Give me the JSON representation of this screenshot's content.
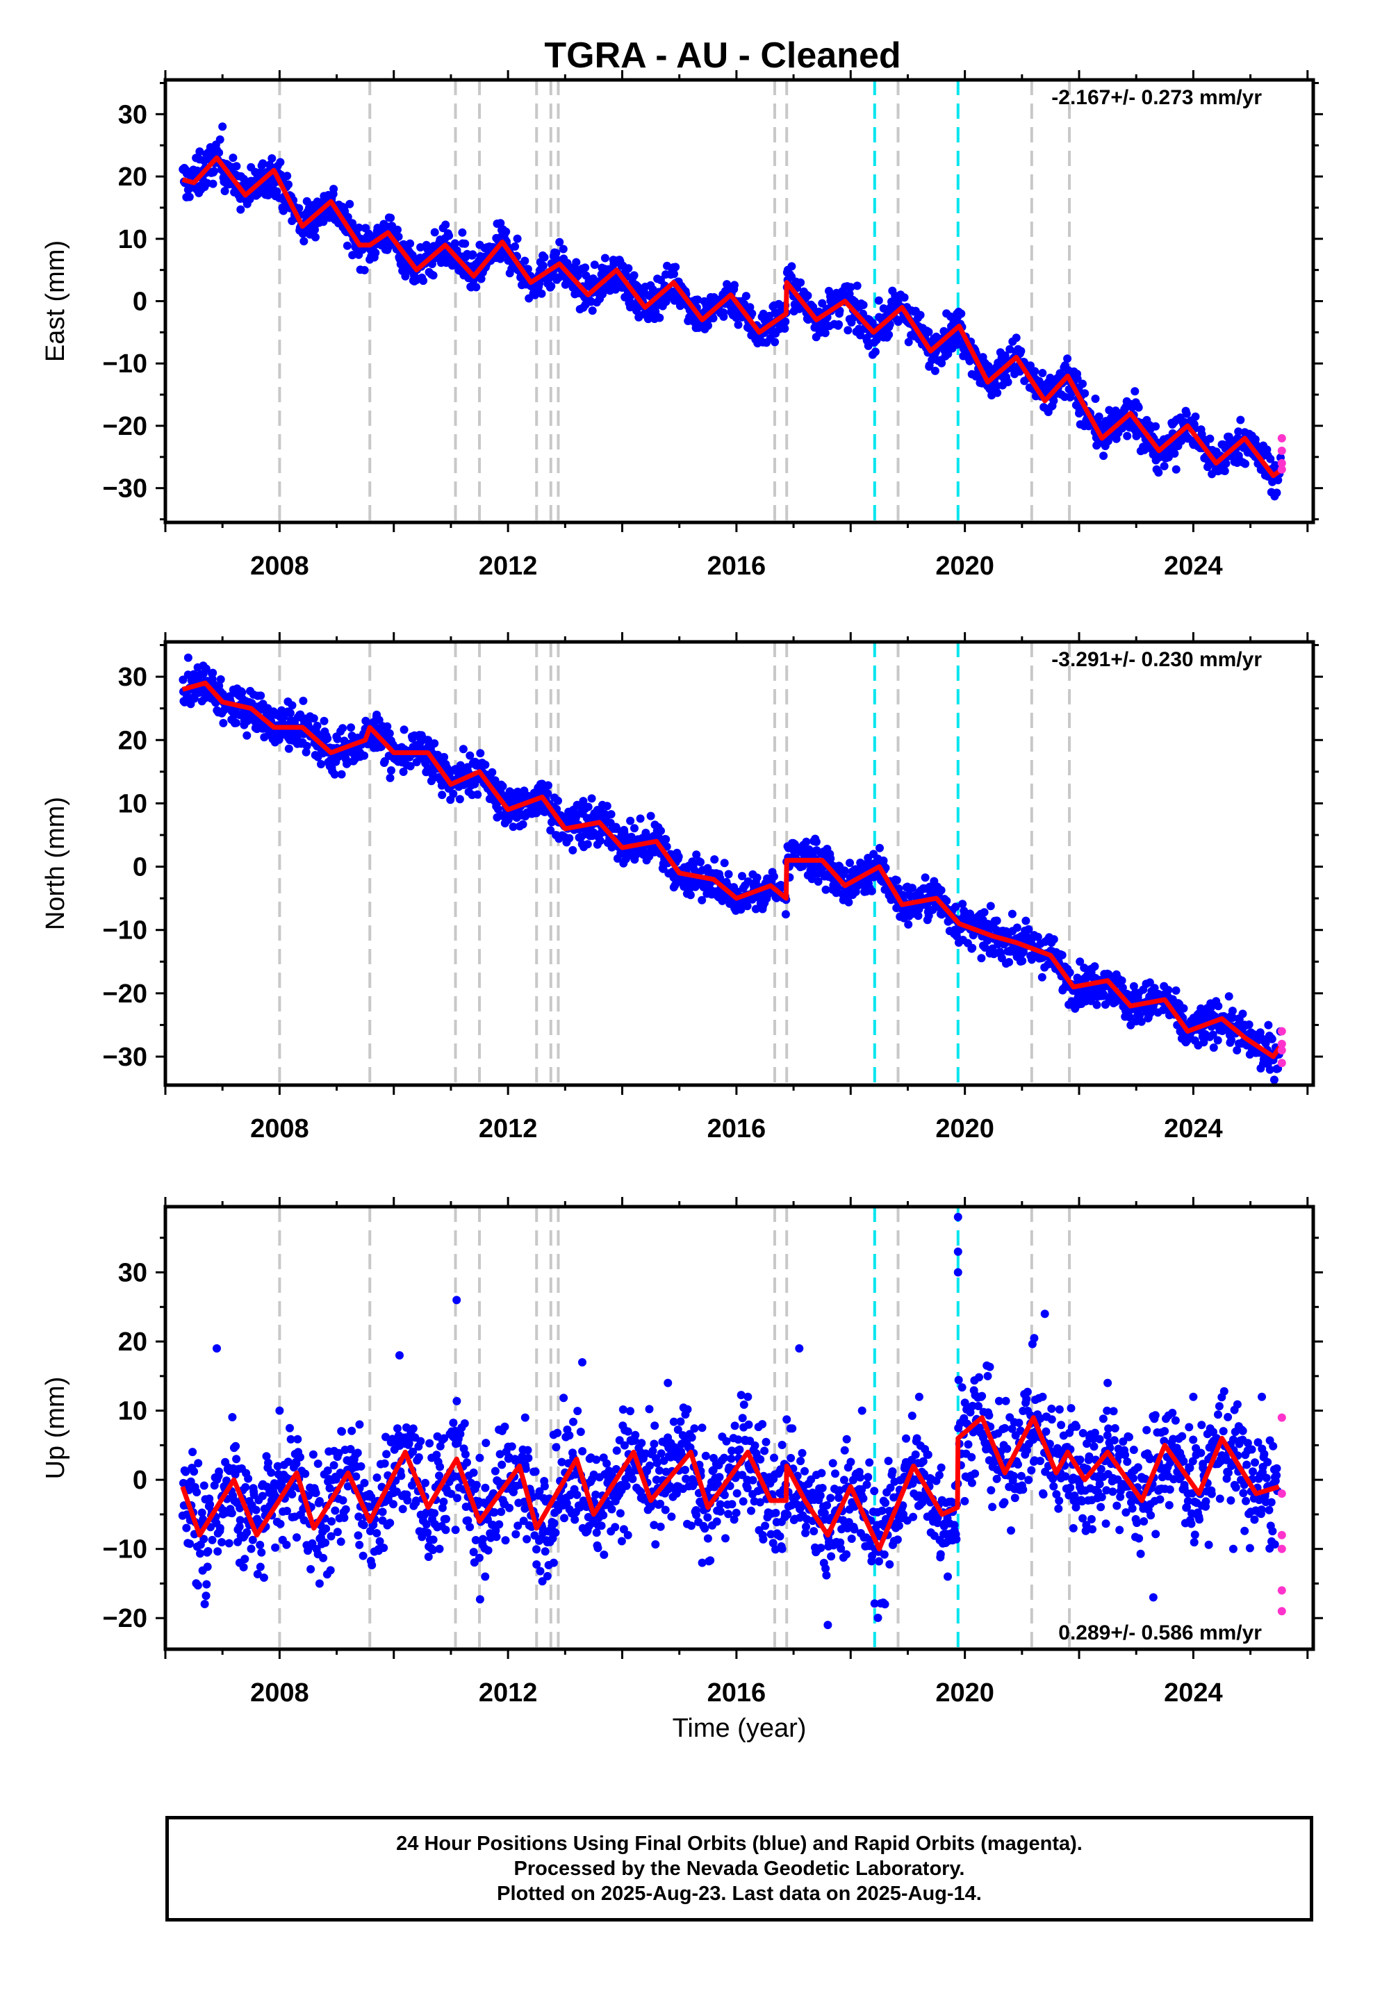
{
  "chart_data": {
    "title": "TGRA  - AU - Cleaned",
    "type": "scatter",
    "xlabel": "Time (year)",
    "x_ticks": [
      2008,
      2012,
      2016,
      2020,
      2024
    ],
    "xlim": [
      2006.0,
      2026.1
    ],
    "event_lines": {
      "gray": [
        2008.0,
        2009.58,
        2011.08,
        2011.5,
        2012.5,
        2012.75,
        2012.88,
        2016.67,
        2016.88,
        2018.83,
        2021.17,
        2021.83
      ],
      "cyan": [
        2018.42,
        2019.88
      ]
    },
    "colors": {
      "final_orbits": "#0000ff",
      "rapid_orbits": "#ff33cc",
      "model": "#ff0000",
      "gray_line": "#c8c8c8",
      "cyan_line": "#00e5ee"
    },
    "panels": [
      {
        "name": "east",
        "ylabel": "East (mm)",
        "y_ticks": [
          30,
          20,
          10,
          0,
          -10,
          -20,
          -30
        ],
        "ylim": [
          -35.5,
          35.5
        ],
        "rate_text": "-2.167+/- 0.273 mm/yr",
        "rate_position": "top-right",
        "model_x": [
          2006.3,
          2006.5,
          2006.9,
          2007.4,
          2007.9,
          2008.4,
          2008.9,
          2009.4,
          2009.58,
          2009.9,
          2010.4,
          2010.9,
          2011.4,
          2011.9,
          2012.4,
          2012.9,
          2013.4,
          2013.9,
          2014.4,
          2014.9,
          2015.4,
          2015.9,
          2016.4,
          2016.87,
          2016.88,
          2017.4,
          2017.9,
          2018.4,
          2018.9,
          2019.4,
          2019.9,
          2020.4,
          2020.9,
          2021.4,
          2021.8,
          2022.4,
          2022.9,
          2023.4,
          2023.9,
          2024.4,
          2024.9,
          2025.4,
          2025.55
        ],
        "model_y": [
          19.5,
          19,
          23,
          17,
          21,
          12,
          16,
          9,
          9,
          11,
          5,
          9,
          4,
          9.5,
          3,
          6,
          1,
          5,
          -1,
          3,
          -3,
          1,
          -5,
          -2,
          3,
          -3,
          0,
          -5,
          -1,
          -8,
          -4,
          -13,
          -9,
          -16,
          -12,
          -22,
          -18,
          -24,
          -20,
          -26,
          -22,
          -28,
          -27
        ],
        "points": {
          "final": [
            [
              2006.6,
              24
            ],
            [
              2007.0,
              28
            ],
            [
              2007.8,
              17
            ],
            [
              2008.5,
              13
            ],
            [
              2009.3,
              10
            ],
            [
              2010.2,
              8
            ],
            [
              2011.2,
              11
            ],
            [
              2011.8,
              7
            ],
            [
              2012.6,
              4
            ],
            [
              2013.5,
              3
            ],
            [
              2014.3,
              2
            ],
            [
              2015.2,
              -1
            ],
            [
              2016.1,
              0
            ],
            [
              2016.9,
              5
            ],
            [
              2017.8,
              -2
            ],
            [
              2018.7,
              -1
            ],
            [
              2019.5,
              -6
            ],
            [
              2020.5,
              -11
            ],
            [
              2021.3,
              -14
            ],
            [
              2022.0,
              -18
            ],
            [
              2023.0,
              -21
            ],
            [
              2023.7,
              -27
            ],
            [
              2024.5,
              -23
            ],
            [
              2025.2,
              -27
            ]
          ],
          "rapid": [
            [
              2025.55,
              -22
            ],
            [
              2025.55,
              -24
            ],
            [
              2025.55,
              -26
            ],
            [
              2025.55,
              -27
            ]
          ]
        }
      },
      {
        "name": "north",
        "ylabel": "North (mm)",
        "y_ticks": [
          30,
          20,
          10,
          0,
          -10,
          -20,
          -30
        ],
        "ylim": [
          -34.5,
          35.5
        ],
        "rate_text": "-3.291+/- 0.230 mm/yr",
        "rate_position": "top-right",
        "model_x": [
          2006.3,
          2006.7,
          2007.0,
          2007.5,
          2007.9,
          2008.4,
          2008.9,
          2009.5,
          2009.58,
          2010.0,
          2010.6,
          2011.0,
          2011.5,
          2012.0,
          2012.6,
          2013.0,
          2013.6,
          2014.0,
          2014.6,
          2015.0,
          2015.6,
          2016.0,
          2016.6,
          2016.87,
          2016.88,
          2017.5,
          2017.9,
          2018.5,
          2018.9,
          2019.5,
          2019.9,
          2020.5,
          2020.9,
          2021.5,
          2021.9,
          2022.5,
          2022.9,
          2023.5,
          2023.9,
          2024.5,
          2024.9,
          2025.4,
          2025.55
        ],
        "model_y": [
          28,
          29,
          26,
          25,
          22,
          22,
          18,
          20,
          22,
          18,
          18,
          13,
          15,
          9,
          11,
          6,
          7,
          3,
          4,
          -1,
          -2,
          -5,
          -3,
          -5,
          1,
          1,
          -3,
          0,
          -6,
          -5,
          -9,
          -11,
          -12,
          -14,
          -19,
          -18,
          -22,
          -21,
          -26,
          -24,
          -27,
          -30,
          -28
        ],
        "points": {
          "final": [
            [
              2006.4,
              33
            ],
            [
              2007.3,
              27
            ],
            [
              2008.2,
              21
            ],
            [
              2009.1,
              18
            ],
            [
              2009.7,
              24
            ],
            [
              2010.6,
              20
            ],
            [
              2011.3,
              15
            ],
            [
              2012.4,
              10
            ],
            [
              2013.4,
              6
            ],
            [
              2014.5,
              8
            ],
            [
              2015.5,
              -2
            ],
            [
              2016.3,
              -3
            ],
            [
              2017.2,
              1
            ],
            [
              2018.4,
              2
            ],
            [
              2019.3,
              -6
            ],
            [
              2020.3,
              -11
            ],
            [
              2021.4,
              -14
            ],
            [
              2022.3,
              -19
            ],
            [
              2023.3,
              -22
            ],
            [
              2024.2,
              -27
            ],
            [
              2024.8,
              -24
            ],
            [
              2025.3,
              -31
            ]
          ],
          "rapid": [
            [
              2025.55,
              -26
            ],
            [
              2025.55,
              -28
            ],
            [
              2025.55,
              -29
            ],
            [
              2025.55,
              -31
            ]
          ]
        }
      },
      {
        "name": "up",
        "ylabel": "Up (mm)",
        "y_ticks": [
          30,
          20,
          10,
          0,
          -10,
          -20
        ],
        "ylim": [
          -24.5,
          39.5
        ],
        "rate_text": "0.289+/- 0.586 mm/yr",
        "rate_position": "bottom-right",
        "model_x": [
          2006.3,
          2006.6,
          2007.2,
          2007.6,
          2008.3,
          2008.6,
          2009.2,
          2009.58,
          2010.2,
          2010.6,
          2011.1,
          2011.5,
          2012.2,
          2012.5,
          2013.2,
          2013.5,
          2014.2,
          2014.5,
          2015.2,
          2015.5,
          2016.2,
          2016.6,
          2016.87,
          2016.88,
          2017.2,
          2017.6,
          2018.0,
          2018.5,
          2019.1,
          2019.6,
          2019.87,
          2019.88,
          2020.3,
          2020.7,
          2021.2,
          2021.6,
          2021.8,
          2022.1,
          2022.5,
          2023.1,
          2023.5,
          2024.1,
          2024.5,
          2025.1,
          2025.5
        ],
        "model_y": [
          -1,
          -8,
          0,
          -8,
          1,
          -7,
          1,
          -6,
          4,
          -4,
          3,
          -6,
          2,
          -7,
          3,
          -5,
          4,
          -3,
          4,
          -4,
          4,
          -3,
          -3,
          2,
          -3,
          -8,
          -1,
          -10,
          2,
          -5,
          -4,
          6,
          9,
          1,
          9,
          1,
          4,
          0,
          4,
          -3,
          5,
          -2,
          6,
          -2,
          -1
        ],
        "points": {
          "final": [
            [
              2006.9,
              19
            ],
            [
              2007.3,
              -12
            ],
            [
              2008.0,
              10
            ],
            [
              2008.7,
              -15
            ],
            [
              2009.4,
              8
            ],
            [
              2010.1,
              18
            ],
            [
              2010.8,
              -10
            ],
            [
              2011.1,
              26
            ],
            [
              2011.6,
              -14
            ],
            [
              2012.3,
              9
            ],
            [
              2012.8,
              -12
            ],
            [
              2013.3,
              17
            ],
            [
              2014.1,
              -8
            ],
            [
              2014.8,
              14
            ],
            [
              2015.4,
              -12
            ],
            [
              2016.2,
              12
            ],
            [
              2016.8,
              -10
            ],
            [
              2017.1,
              19
            ],
            [
              2017.6,
              -21
            ],
            [
              2018.2,
              10
            ],
            [
              2018.6,
              -18
            ],
            [
              2019.2,
              12
            ],
            [
              2019.88,
              38
            ],
            [
              2019.88,
              33
            ],
            [
              2019.88,
              30
            ],
            [
              2020.4,
              15
            ],
            [
              2021.4,
              24
            ],
            [
              2021.9,
              -7
            ],
            [
              2022.5,
              14
            ],
            [
              2023.3,
              -17
            ],
            [
              2024.0,
              12
            ],
            [
              2024.7,
              -10
            ],
            [
              2025.2,
              12
            ]
          ],
          "rapid": [
            [
              2025.55,
              9
            ],
            [
              2025.55,
              -2
            ],
            [
              2025.55,
              -8
            ],
            [
              2025.55,
              -10
            ],
            [
              2025.55,
              -16
            ],
            [
              2025.55,
              -19
            ]
          ]
        }
      }
    ]
  },
  "footer": {
    "line1": "24 Hour Positions Using Final Orbits (blue) and Rapid Orbits (magenta).",
    "line2": "Processed by the Nevada Geodetic Laboratory.",
    "line3": "Plotted on 2025-Aug-23. Last data on 2025-Aug-14."
  }
}
